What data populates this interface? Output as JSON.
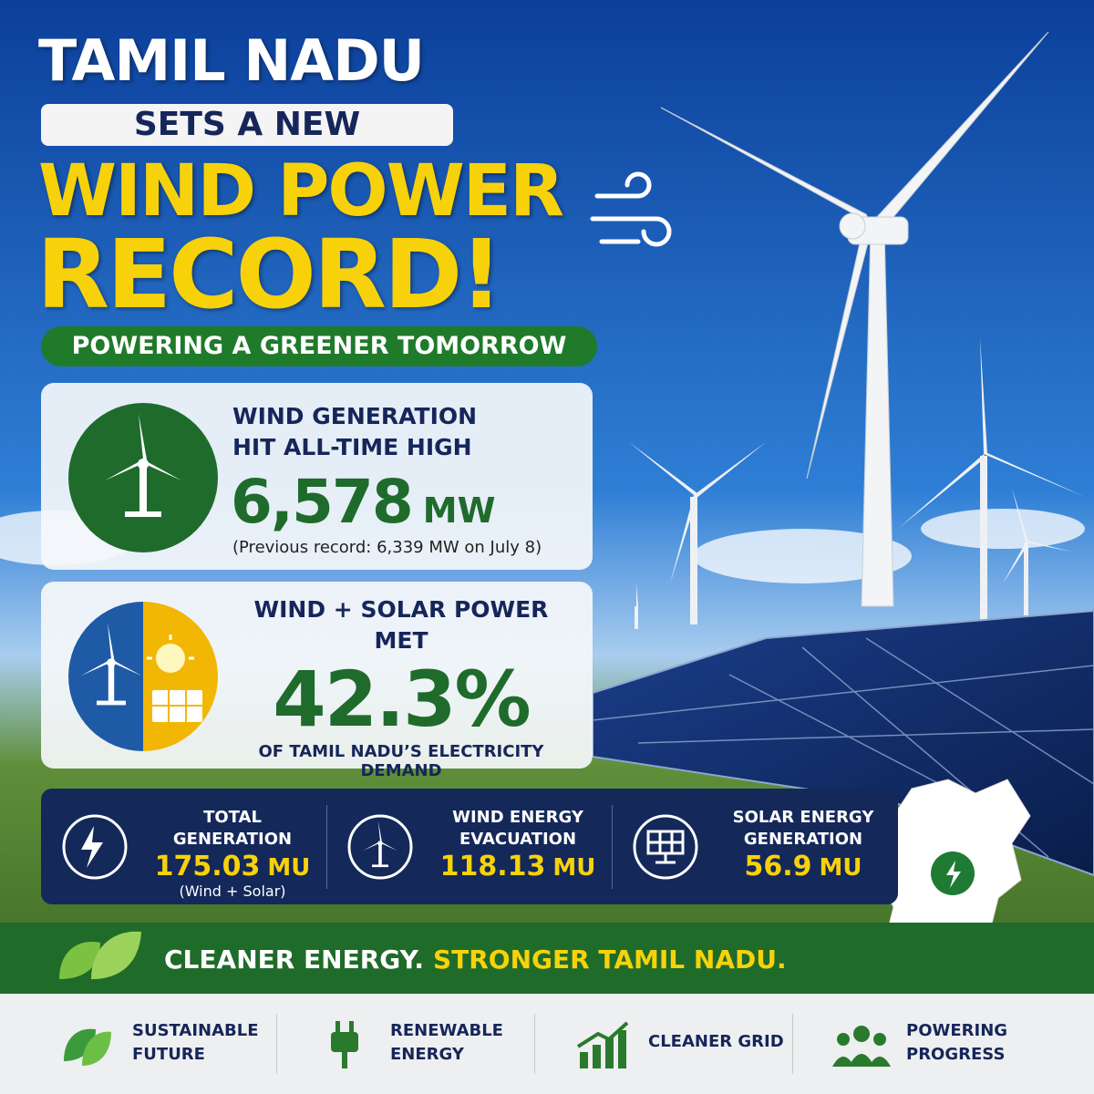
{
  "header": {
    "title": "TAMIL NADU",
    "kicker": "SETS A NEW",
    "headline": [
      "WIND POWER",
      "RECORD!"
    ],
    "tagline": "POWERING A GREENER TOMORROW"
  },
  "cards": [
    {
      "heading": [
        "WIND GENERATION",
        "HIT ALL-TIME HIGH"
      ],
      "value": "6,578",
      "unit": "MW",
      "note": "(Previous record: 6,339 MW on July 8)"
    },
    {
      "heading": [
        "WIND + SOLAR POWER",
        "MET"
      ],
      "value": "42.3%",
      "note": "OF TAMIL NADU’S ELECTRICITY DEMAND"
    }
  ],
  "stats": [
    {
      "label": [
        "TOTAL GENERATION"
      ],
      "value": "175.03",
      "unit": "MU",
      "note": "(Wind + Solar)"
    },
    {
      "label": [
        "WIND ENERGY",
        "EVACUATION"
      ],
      "value": "118.13",
      "unit": "MU"
    },
    {
      "label": [
        "SOLAR ENERGY",
        "GENERATION"
      ],
      "value": "56.9",
      "unit": "MU"
    }
  ],
  "banner": {
    "text": "CLEANER ENERGY.",
    "highlight": "STRONGER TAMIL NADU."
  },
  "footer": [
    {
      "label": [
        "SUSTAINABLE",
        "FUTURE"
      ]
    },
    {
      "label": [
        "RENEWABLE",
        "ENERGY"
      ]
    },
    {
      "label": [
        "CLEANER GRID"
      ]
    },
    {
      "label": [
        "POWERING",
        "PROGRESS"
      ]
    }
  ]
}
